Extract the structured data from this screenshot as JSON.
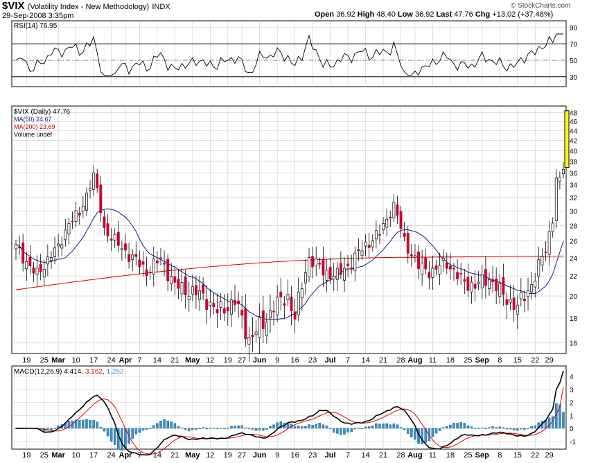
{
  "header": {
    "symbol": "$VIX",
    "name": "(Volatility Index - New Methodology)",
    "exchange": "INDX",
    "date": "29-Sep-2008 3:35pm",
    "quote": {
      "open_label": "Open",
      "open": "36.92",
      "high_label": "High",
      "high": "48.40",
      "low_label": "Low",
      "low": "36.92",
      "last_label": "Last",
      "last": "47.76",
      "chg_label": "Chg",
      "chg": "+13.02 (+37.48%)"
    },
    "watermark": "© StockCharts.com"
  },
  "rsi": {
    "label": "RSI(14) 76.95",
    "ticks": [
      90,
      70,
      50,
      30
    ],
    "overbought": 70,
    "oversold": 30,
    "range": [
      18,
      98
    ]
  },
  "price": {
    "legend": [
      {
        "text": "$VIX (Daily) 47.76",
        "color": "#000000"
      },
      {
        "text": "MA(50) 24.67",
        "color": "#1a1a8c"
      },
      {
        "text": "MA(200) 23.69",
        "color": "#cc0000"
      },
      {
        "text": "Volume undef",
        "color": "#000000"
      }
    ],
    "ticks": [
      48,
      46,
      44,
      42,
      40,
      38,
      36,
      34,
      32,
      30,
      28,
      26,
      24,
      22,
      20,
      18,
      16
    ],
    "log_range": [
      15.2,
      49.5
    ]
  },
  "macd": {
    "label_prefix": "MACD(12,26,9)",
    "macd_value": "4.414",
    "signal_value": "3.162",
    "hist_value": "1.252",
    "ticks": [
      4,
      3,
      2,
      1,
      0,
      -1
    ],
    "range": [
      -1.6,
      4.8
    ]
  },
  "x_axis": {
    "labels": [
      {
        "t": "19",
        "bold": false
      },
      {
        "t": "25",
        "bold": false
      },
      {
        "t": "Mar",
        "bold": true
      },
      {
        "t": "10",
        "bold": false
      },
      {
        "t": "17",
        "bold": false
      },
      {
        "t": "24",
        "bold": false
      },
      {
        "t": "Apr",
        "bold": true
      },
      {
        "t": "7",
        "bold": false
      },
      {
        "t": "14",
        "bold": false
      },
      {
        "t": "21",
        "bold": false
      },
      {
        "t": "May",
        "bold": true
      },
      {
        "t": "12",
        "bold": false
      },
      {
        "t": "19",
        "bold": false
      },
      {
        "t": "27",
        "bold": false
      },
      {
        "t": "Jun",
        "bold": true
      },
      {
        "t": "9",
        "bold": false
      },
      {
        "t": "16",
        "bold": false
      },
      {
        "t": "23",
        "bold": false
      },
      {
        "t": "Jul",
        "bold": true
      },
      {
        "t": "7",
        "bold": false
      },
      {
        "t": "14",
        "bold": false
      },
      {
        "t": "21",
        "bold": false
      },
      {
        "t": "28",
        "bold": false
      },
      {
        "t": "Aug",
        "bold": true
      },
      {
        "t": "11",
        "bold": false
      },
      {
        "t": "18",
        "bold": false
      },
      {
        "t": "25",
        "bold": false
      },
      {
        "t": "Sep",
        "bold": true
      },
      {
        "t": "8",
        "bold": false
      },
      {
        "t": "15",
        "bold": false
      },
      {
        "t": "22",
        "bold": false
      },
      {
        "t": "29",
        "bold": false
      }
    ]
  },
  "colors": {
    "up": "#ffffff",
    "down": "#cc0033",
    "ma50": "#1a1a8c",
    "ma200": "#dd0000",
    "macd": "#000000",
    "signal": "#dd0000",
    "hist": "#3a8fc8",
    "grid": "#c8c8c8",
    "highlight": "#ffff00"
  },
  "chart_data": {
    "type": "candlestick",
    "title": "$VIX (Volatility Index - New Methodology) INDX",
    "period": "Daily",
    "x_range": [
      "2008-02-15",
      "2008-09-29"
    ],
    "y_range": [
      16,
      48
    ],
    "y_scale": "log",
    "x_anchors": [
      {
        "label": "Mar",
        "value": 25.0
      },
      {
        "label": "Mar 17",
        "value": 35.6
      },
      {
        "label": "Apr",
        "value": 24.0
      },
      {
        "label": "May 19",
        "value": 16.3
      },
      {
        "label": "Jun",
        "value": 18.0
      },
      {
        "label": "Jun 9",
        "value": 24.0
      },
      {
        "label": "Jul 14",
        "value": 30.8
      },
      {
        "label": "Aug 25",
        "value": 19.0
      },
      {
        "label": "Sep 15",
        "value": 35.0
      },
      {
        "label": "Sep 17",
        "value": 42.2
      },
      {
        "label": "Sep 29",
        "value": 47.76
      }
    ],
    "series": [
      {
        "name": "MA(50)",
        "last": 24.67
      },
      {
        "name": "MA(200)",
        "last": 23.69
      }
    ],
    "last_quote": {
      "open": 36.92,
      "high": 48.4,
      "low": 36.92,
      "last": 47.76
    }
  }
}
